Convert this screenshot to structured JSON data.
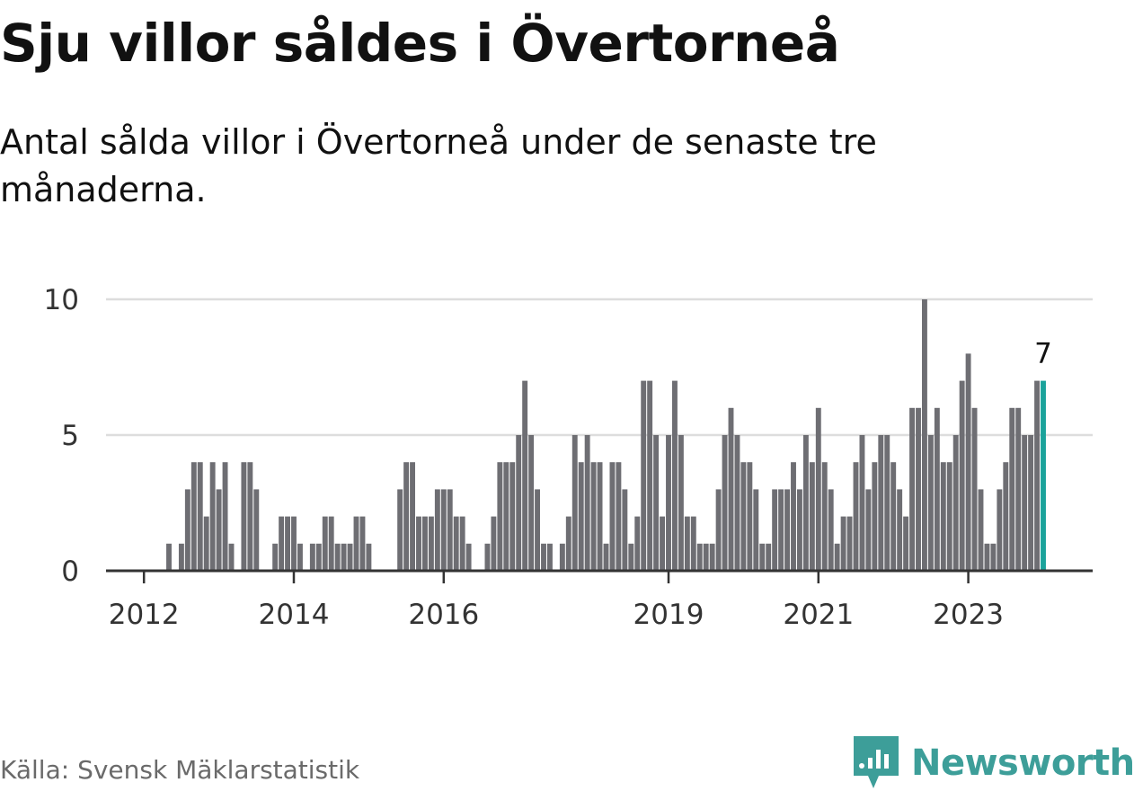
{
  "title": "Sju villor såldes i Övertorneå",
  "subtitle": "Antal sålda villor i Övertorneå under de senaste tre månaderna.",
  "source": "Källa: Svensk Mäklarstatistik",
  "brand": {
    "name": "Newsworthy",
    "icon": "newsworthy-logo-icon",
    "color": "#3d9e99"
  },
  "colors": {
    "bar": "#6e6e73",
    "highlight": "#1aa39b",
    "grid": "#dddddd",
    "axis": "#333333"
  },
  "chart_data": {
    "type": "bar",
    "title": "Sju villor såldes i Övertorneå",
    "xlabel": "",
    "ylabel": "",
    "ylim": [
      0,
      10
    ],
    "yticks": [
      0,
      5,
      10
    ],
    "grid": true,
    "x_start_month": "2011-08",
    "xticks": [
      {
        "label": "2012",
        "index": 5
      },
      {
        "label": "2014",
        "index": 29
      },
      {
        "label": "2016",
        "index": 53
      },
      {
        "label": "2019",
        "index": 89
      },
      {
        "label": "2021",
        "index": 113
      },
      {
        "label": "2023",
        "index": 137
      }
    ],
    "values": [
      0,
      0,
      0,
      0,
      0,
      0,
      0,
      0,
      0,
      1,
      0,
      1,
      3,
      4,
      4,
      2,
      4,
      3,
      4,
      1,
      0,
      4,
      4,
      3,
      0,
      0,
      1,
      2,
      2,
      2,
      1,
      0,
      1,
      1,
      2,
      2,
      1,
      1,
      1,
      2,
      2,
      1,
      0,
      0,
      0,
      0,
      3,
      4,
      4,
      2,
      2,
      2,
      3,
      3,
      3,
      2,
      2,
      1,
      0,
      0,
      1,
      2,
      4,
      4,
      4,
      5,
      7,
      5,
      3,
      1,
      1,
      0,
      1,
      2,
      5,
      4,
      5,
      4,
      4,
      1,
      4,
      4,
      3,
      1,
      2,
      7,
      7,
      5,
      2,
      5,
      7,
      5,
      2,
      2,
      1,
      1,
      1,
      3,
      5,
      6,
      5,
      4,
      4,
      3,
      1,
      1,
      3,
      3,
      3,
      4,
      3,
      5,
      4,
      6,
      4,
      3,
      1,
      2,
      2,
      4,
      5,
      3,
      4,
      5,
      5,
      4,
      3,
      2,
      6,
      6,
      10,
      5,
      6,
      4,
      4,
      5,
      7,
      8,
      6,
      3,
      1,
      1,
      3,
      4,
      6,
      6,
      5,
      5,
      7,
      7
    ],
    "highlight_index": 149,
    "highlight_label": "7"
  }
}
